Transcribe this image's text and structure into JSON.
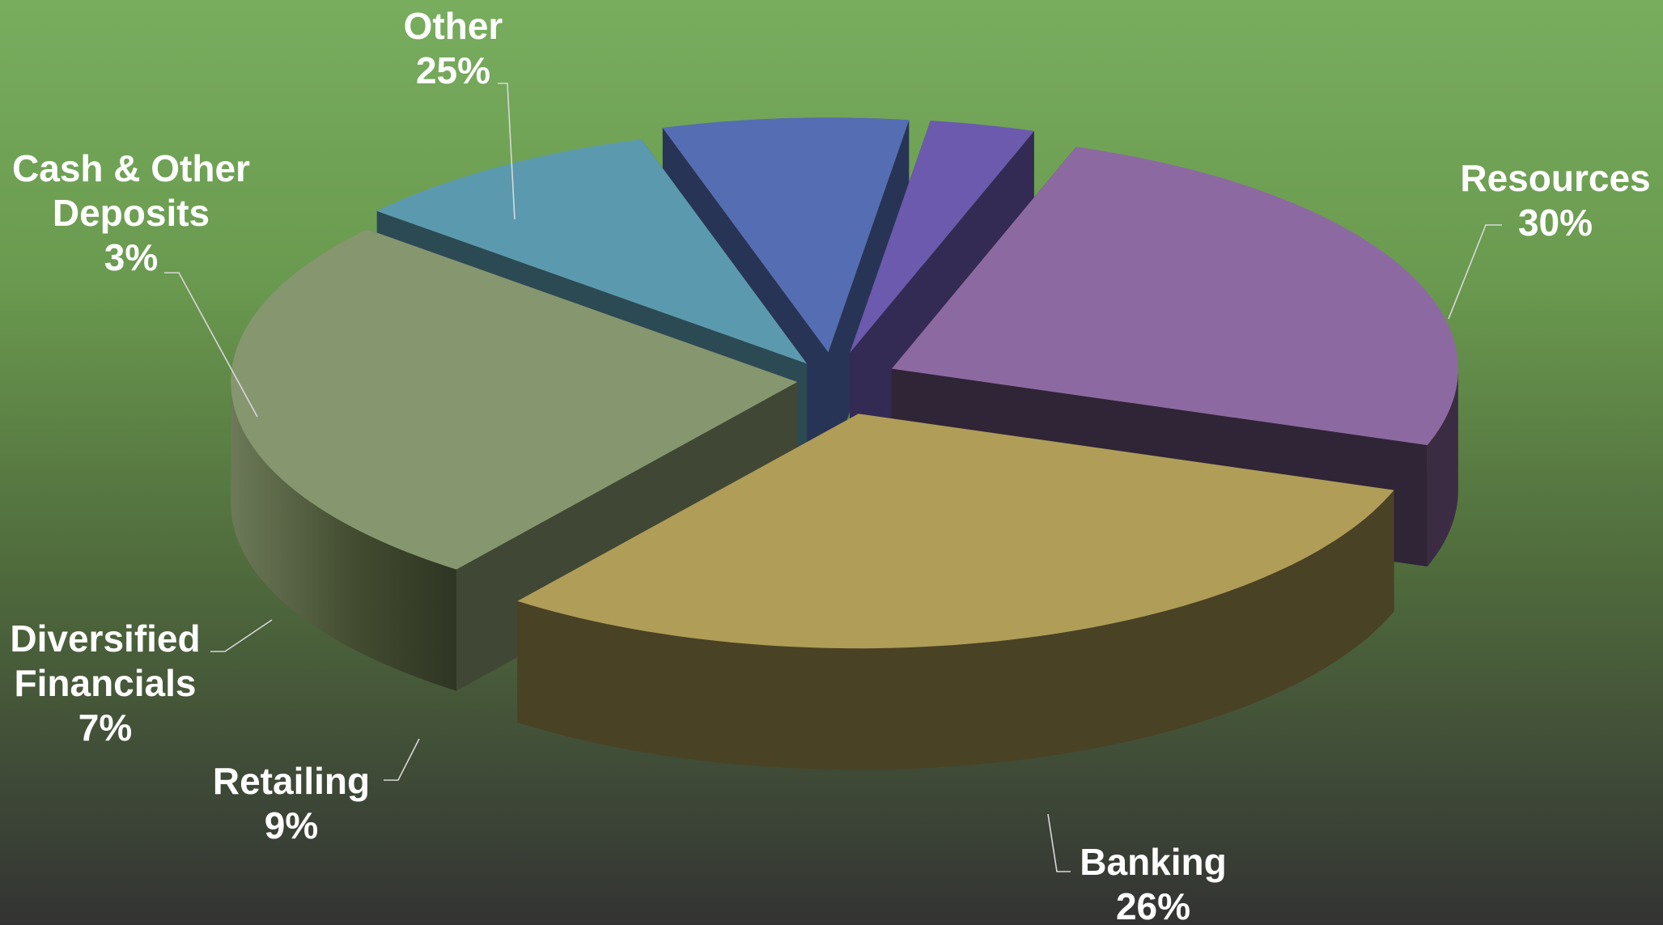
{
  "chart_data": {
    "type": "pie",
    "variant": "3d-exploded",
    "title": "",
    "legend": "none",
    "data_labels": "category-and-percent",
    "slices": [
      {
        "name": "Resources",
        "label_lines": [
          "Resources"
        ],
        "value": 30,
        "percent": "30%",
        "color": "#b09d57"
      },
      {
        "name": "Banking",
        "label_lines": [
          "Banking"
        ],
        "value": 26,
        "percent": "26%",
        "color": "#86966f"
      },
      {
        "name": "Retailing",
        "label_lines": [
          "Retailing"
        ],
        "value": 9,
        "percent": "9%",
        "color": "#5b9aae"
      },
      {
        "name": "Diversified Financials",
        "label_lines": [
          "Diversified",
          "Financials"
        ],
        "value": 7,
        "percent": "7%",
        "color": "#546db3"
      },
      {
        "name": "Cash & Other Deposits",
        "label_lines": [
          "Cash & Other",
          "Deposits"
        ],
        "value": 3,
        "percent": "3%",
        "color": "#6b5aae"
      },
      {
        "name": "Other",
        "label_lines": [
          "Other"
        ],
        "value": 25,
        "percent": "25%",
        "color": "#8d69a2"
      }
    ],
    "background": {
      "top": "#78ad5e",
      "bottom": "#333333"
    }
  }
}
